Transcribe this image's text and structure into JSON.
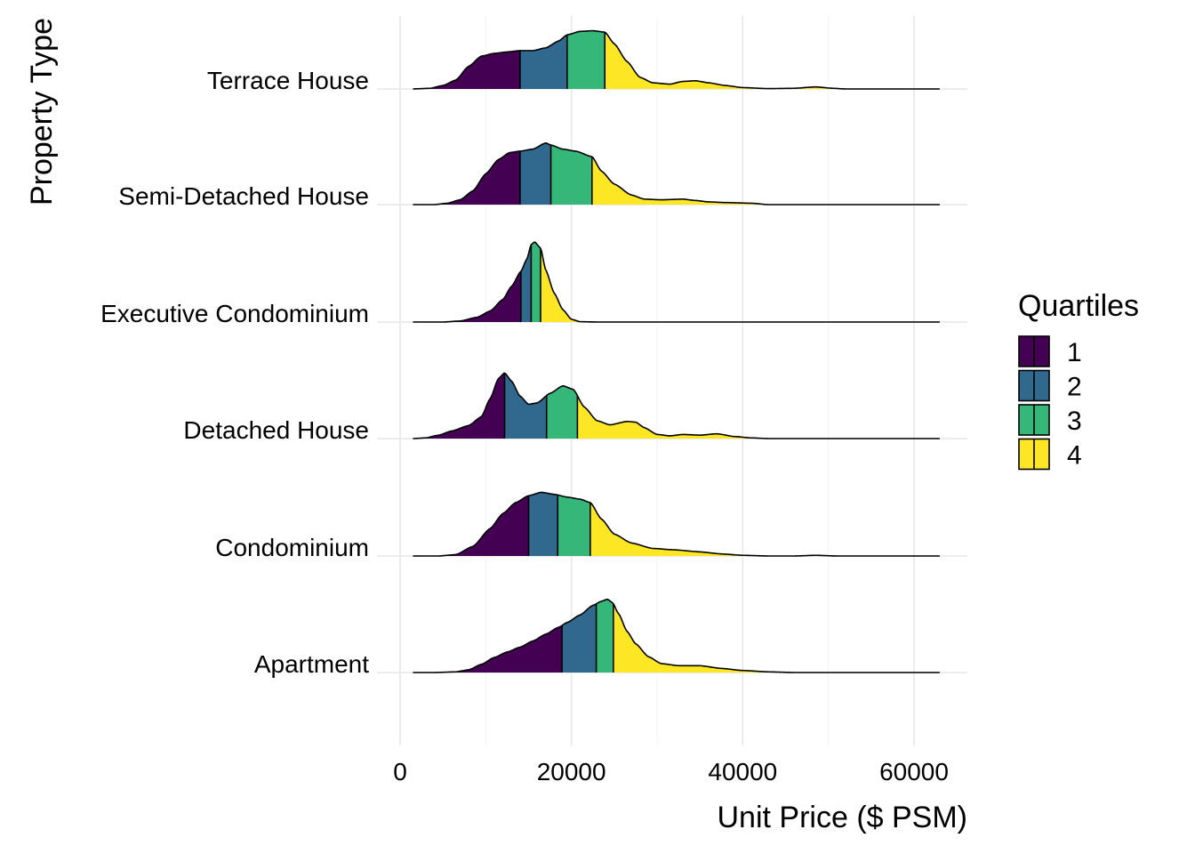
{
  "chart_data": {
    "type": "area",
    "title": "",
    "xlabel": "Unit Price ($ PSM)",
    "ylabel": "Property Type",
    "xlim": [
      0,
      65000
    ],
    "x_ticks": [
      0,
      20000,
      40000,
      60000
    ],
    "x_tick_labels": [
      "0",
      "20000",
      "40000",
      "60000"
    ],
    "grid": true,
    "legend": {
      "title": "Quartiles",
      "placement": "right",
      "entries": [
        {
          "label": "1",
          "color": "#440154"
        },
        {
          "label": "2",
          "color": "#31688E"
        },
        {
          "label": "3",
          "color": "#35B779"
        },
        {
          "label": "4",
          "color": "#FDE725"
        }
      ]
    },
    "series": [
      {
        "name": "Apartment",
        "x_range": [
          1500,
          63000
        ],
        "quartiles": [
          18900,
          22900,
          24900
        ],
        "density_points": [
          [
            1500,
            0
          ],
          [
            4000,
            0
          ],
          [
            6500,
            0.01
          ],
          [
            8000,
            0.04
          ],
          [
            9500,
            0.12
          ],
          [
            11000,
            0.22
          ],
          [
            12500,
            0.3
          ],
          [
            14000,
            0.37
          ],
          [
            15500,
            0.46
          ],
          [
            17000,
            0.56
          ],
          [
            18500,
            0.66
          ],
          [
            19500,
            0.73
          ],
          [
            21000,
            0.84
          ],
          [
            22500,
            0.98
          ],
          [
            23500,
            1.04
          ],
          [
            24200,
            1.07
          ],
          [
            24800,
            1.02
          ],
          [
            25500,
            0.86
          ],
          [
            26500,
            0.6
          ],
          [
            27500,
            0.42
          ],
          [
            29000,
            0.23
          ],
          [
            30500,
            0.13
          ],
          [
            32500,
            0.1
          ],
          [
            35000,
            0.1
          ],
          [
            37500,
            0.06
          ],
          [
            40000,
            0.03
          ],
          [
            43000,
            0.01
          ],
          [
            46000,
            0
          ],
          [
            63000,
            0
          ]
        ]
      },
      {
        "name": "Condominium",
        "x_range": [
          1500,
          63000
        ],
        "quartiles": [
          15000,
          18400,
          22200
        ],
        "density_points": [
          [
            1500,
            0
          ],
          [
            4500,
            0
          ],
          [
            6500,
            0.02
          ],
          [
            8500,
            0.14
          ],
          [
            10500,
            0.4
          ],
          [
            12000,
            0.62
          ],
          [
            13500,
            0.78
          ],
          [
            15000,
            0.88
          ],
          [
            16500,
            0.93
          ],
          [
            18000,
            0.9
          ],
          [
            19500,
            0.86
          ],
          [
            21000,
            0.83
          ],
          [
            22200,
            0.78
          ],
          [
            23500,
            0.54
          ],
          [
            25000,
            0.32
          ],
          [
            27000,
            0.19
          ],
          [
            29500,
            0.11
          ],
          [
            32000,
            0.09
          ],
          [
            35000,
            0.06
          ],
          [
            37500,
            0.03
          ],
          [
            40000,
            0.01
          ],
          [
            43000,
            0
          ],
          [
            46000,
            0
          ],
          [
            48500,
            0.01
          ],
          [
            51000,
            0
          ],
          [
            63000,
            0
          ]
        ]
      },
      {
        "name": "Detached House",
        "x_range": [
          1500,
          63000
        ],
        "quartiles": [
          12200,
          17100,
          20700
        ],
        "density_points": [
          [
            1500,
            0
          ],
          [
            3000,
            0.01
          ],
          [
            4500,
            0.05
          ],
          [
            6000,
            0.11
          ],
          [
            8000,
            0.19
          ],
          [
            9500,
            0.32
          ],
          [
            10500,
            0.58
          ],
          [
            11500,
            0.88
          ],
          [
            12200,
            0.96
          ],
          [
            13000,
            0.84
          ],
          [
            14000,
            0.62
          ],
          [
            15000,
            0.5
          ],
          [
            16000,
            0.52
          ],
          [
            17500,
            0.66
          ],
          [
            19000,
            0.77
          ],
          [
            20200,
            0.72
          ],
          [
            21500,
            0.46
          ],
          [
            23000,
            0.26
          ],
          [
            24500,
            0.2
          ],
          [
            26500,
            0.25
          ],
          [
            27500,
            0.24
          ],
          [
            28500,
            0.16
          ],
          [
            30000,
            0.06
          ],
          [
            31500,
            0.04
          ],
          [
            33000,
            0.06
          ],
          [
            35000,
            0.05
          ],
          [
            37000,
            0.07
          ],
          [
            39000,
            0.03
          ],
          [
            41000,
            0.01
          ],
          [
            43000,
            0
          ],
          [
            63000,
            0
          ]
        ]
      },
      {
        "name": "Executive Condominium",
        "x_range": [
          1500,
          63000
        ],
        "quartiles": [
          14100,
          15300,
          16400
        ],
        "density_points": [
          [
            1500,
            0
          ],
          [
            5000,
            0
          ],
          [
            7000,
            0.015
          ],
          [
            9000,
            0.07
          ],
          [
            10500,
            0.16
          ],
          [
            12000,
            0.33
          ],
          [
            13000,
            0.52
          ],
          [
            14100,
            0.74
          ],
          [
            14800,
            0.92
          ],
          [
            15300,
            1.13
          ],
          [
            15700,
            1.17
          ],
          [
            16400,
            1.08
          ],
          [
            17000,
            0.76
          ],
          [
            18000,
            0.42
          ],
          [
            19000,
            0.18
          ],
          [
            20000,
            0.04
          ],
          [
            21000,
            0.005
          ],
          [
            23000,
            0
          ],
          [
            63000,
            0
          ]
        ]
      },
      {
        "name": "Semi-Detached House",
        "x_range": [
          1500,
          63000
        ],
        "quartiles": [
          14000,
          17600,
          22400
        ],
        "density_points": [
          [
            1500,
            0
          ],
          [
            4000,
            0
          ],
          [
            5500,
            0.02
          ],
          [
            7000,
            0.07
          ],
          [
            8500,
            0.2
          ],
          [
            10000,
            0.45
          ],
          [
            11500,
            0.66
          ],
          [
            12800,
            0.76
          ],
          [
            14000,
            0.78
          ],
          [
            15500,
            0.81
          ],
          [
            17000,
            0.9
          ],
          [
            17600,
            0.87
          ],
          [
            19000,
            0.81
          ],
          [
            20500,
            0.78
          ],
          [
            22400,
            0.7
          ],
          [
            23500,
            0.49
          ],
          [
            25000,
            0.3
          ],
          [
            27000,
            0.14
          ],
          [
            28500,
            0.08
          ],
          [
            30500,
            0.07
          ],
          [
            33000,
            0.08
          ],
          [
            34500,
            0.06
          ],
          [
            36000,
            0.04
          ],
          [
            38000,
            0.03
          ],
          [
            41000,
            0.02
          ],
          [
            43000,
            0
          ],
          [
            63000,
            0
          ]
        ]
      },
      {
        "name": "Terrace House",
        "x_range": [
          1500,
          63000
        ],
        "quartiles": [
          14000,
          19500,
          23900
        ],
        "density_points": [
          [
            1500,
            0
          ],
          [
            3500,
            0.01
          ],
          [
            5000,
            0.05
          ],
          [
            6500,
            0.13
          ],
          [
            8000,
            0.33
          ],
          [
            9500,
            0.48
          ],
          [
            11000,
            0.52
          ],
          [
            12500,
            0.54
          ],
          [
            14000,
            0.56
          ],
          [
            15500,
            0.56
          ],
          [
            17000,
            0.6
          ],
          [
            18500,
            0.7
          ],
          [
            19500,
            0.79
          ],
          [
            21000,
            0.84
          ],
          [
            22500,
            0.85
          ],
          [
            23900,
            0.83
          ],
          [
            25000,
            0.66
          ],
          [
            26500,
            0.4
          ],
          [
            28000,
            0.17
          ],
          [
            29500,
            0.09
          ],
          [
            31500,
            0.07
          ],
          [
            33000,
            0.11
          ],
          [
            34500,
            0.12
          ],
          [
            36000,
            0.09
          ],
          [
            38000,
            0.05
          ],
          [
            40000,
            0.02
          ],
          [
            43000,
            0.005
          ],
          [
            46000,
            0.01
          ],
          [
            48500,
            0.03
          ],
          [
            50500,
            0.01
          ],
          [
            52000,
            0
          ],
          [
            63000,
            0
          ]
        ]
      }
    ]
  }
}
